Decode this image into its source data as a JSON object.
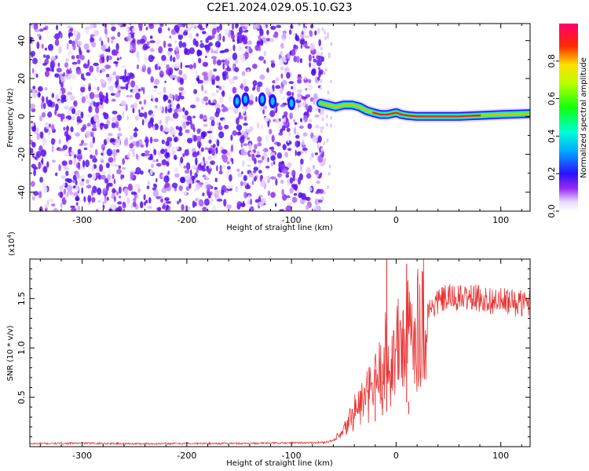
{
  "title": "C2E1.2024.029.05.10.G23",
  "chart_data": [
    {
      "type": "heatmap",
      "panel": "top",
      "xlabel": "Height of straight line (km)",
      "ylabel": "Frequency (Hz)",
      "xlim": [
        -350,
        128
      ],
      "ylim": [
        -50,
        49
      ],
      "xticks": [
        -300,
        -200,
        -100,
        0,
        100
      ],
      "xtick_labels": [
        "-300",
        "-200",
        "-100",
        "0",
        "100"
      ],
      "yticks": [
        -40,
        -20,
        0,
        20,
        40
      ],
      "ytick_labels": [
        "-40",
        "-20",
        "0",
        "20",
        "40"
      ],
      "noise_region_x": [
        -350,
        -70
      ],
      "signal_trace": {
        "x": [
          -72,
          -65,
          -58,
          -50,
          -42,
          -35,
          -28,
          -22,
          -15,
          -8,
          0,
          5,
          10,
          20,
          40,
          60,
          80,
          100,
          128
        ],
        "y": [
          7,
          6,
          5,
          6,
          6,
          5,
          3,
          2,
          1,
          1,
          2,
          1,
          0.5,
          0,
          0,
          0,
          0.5,
          1,
          1.5
        ]
      },
      "blob_series": [
        {
          "x": -152,
          "y": 8
        },
        {
          "x": -144,
          "y": 9
        },
        {
          "x": -128,
          "y": 9
        },
        {
          "x": -118,
          "y": 8
        },
        {
          "x": -100,
          "y": 7
        }
      ],
      "colorbar": {
        "label": "Normalized spectral amplitude",
        "range": [
          0,
          1
        ],
        "ticks": [
          0.0,
          0.2,
          0.4,
          0.6,
          0.8
        ],
        "tick_labels": [
          "0.0",
          "0.2",
          "0.4",
          "0.6",
          "0.8"
        ]
      }
    },
    {
      "type": "line",
      "panel": "bottom",
      "xlabel": "Height of straight line (km)",
      "ylabel": "SNR (10 * v/v)",
      "scale_label": "(x10",
      "scale_exponent": "4",
      "scale_close": ")",
      "xlim": [
        -350,
        128
      ],
      "ylim": [
        0,
        19000
      ],
      "xticks": [
        -300,
        -200,
        -100,
        0,
        100
      ],
      "xtick_labels": [
        "-300",
        "-200",
        "-100",
        "0",
        "100"
      ],
      "yticks": [
        5000,
        10000,
        15000
      ],
      "ytick_labels": [
        "0.5",
        "1.0",
        "1.5"
      ],
      "series": [
        {
          "name": "SNR",
          "color": "#e83030",
          "x": [
            -350,
            -300,
            -250,
            -200,
            -150,
            -100,
            -70,
            -60,
            -52,
            -45,
            -40,
            -35,
            -30,
            -25,
            -20,
            -15,
            -10,
            -8,
            -5,
            0,
            5,
            10,
            15,
            20,
            25,
            30,
            35,
            40,
            45,
            50,
            60,
            70,
            80,
            90,
            100,
            110,
            120,
            128
          ],
          "y": [
            300,
            350,
            300,
            320,
            330,
            380,
            420,
            600,
            1200,
            2500,
            3600,
            4200,
            4700,
            5400,
            6400,
            7300,
            9000,
            8700,
            8000,
            9700,
            10500,
            11200,
            11700,
            12300,
            13000,
            13700,
            14200,
            14700,
            14900,
            15100,
            15000,
            15100,
            15000,
            14800,
            14700,
            14600,
            14500,
            14600
          ]
        }
      ],
      "spikes": [
        {
          "x": -20,
          "y": 7800
        },
        {
          "x": -13,
          "y": 8400
        },
        {
          "x": -9,
          "y": 19000
        },
        {
          "x": 10,
          "y": 18500
        },
        {
          "x": 12,
          "y": 3300
        }
      ]
    }
  ]
}
